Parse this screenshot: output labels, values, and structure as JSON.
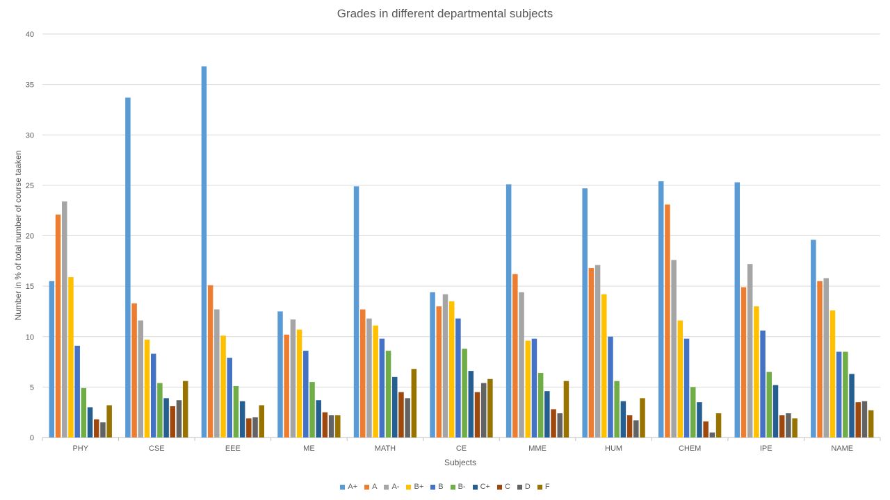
{
  "chart_data": {
    "type": "bar",
    "title": "Grades in different departmental subjects",
    "xlabel": "Subjects",
    "ylabel": "Number in % of total number of course taaken",
    "ylim": [
      0,
      40
    ],
    "yticks": [
      0,
      5,
      10,
      15,
      20,
      25,
      30,
      35,
      40
    ],
    "grid": true,
    "legend_position": "bottom",
    "categories": [
      "PHY",
      "CSE",
      "EEE",
      "ME",
      "MATH",
      "CE",
      "MME",
      "HUM",
      "CHEM",
      "IPE",
      "NAME"
    ],
    "series": [
      {
        "name": "A+",
        "color": "#5B9BD5",
        "values": [
          15.5,
          33.7,
          36.8,
          12.5,
          24.9,
          14.4,
          25.1,
          24.7,
          25.4,
          25.3,
          19.6
        ]
      },
      {
        "name": "A",
        "color": "#ED7D31",
        "values": [
          22.1,
          13.3,
          15.1,
          10.2,
          12.7,
          13.0,
          16.2,
          16.8,
          23.1,
          14.9,
          15.5
        ]
      },
      {
        "name": "A-",
        "color": "#A5A5A5",
        "values": [
          23.4,
          11.6,
          12.7,
          11.7,
          11.8,
          14.2,
          14.4,
          17.1,
          17.6,
          17.2,
          15.8
        ]
      },
      {
        "name": "B+",
        "color": "#FFC000",
        "values": [
          15.9,
          9.7,
          10.1,
          10.7,
          11.1,
          13.5,
          9.6,
          14.2,
          11.6,
          13.0,
          12.6
        ]
      },
      {
        "name": "B",
        "color": "#4472C4",
        "values": [
          9.1,
          8.3,
          7.9,
          8.6,
          9.8,
          11.8,
          9.8,
          10.0,
          9.8,
          10.6,
          8.5
        ]
      },
      {
        "name": "B-",
        "color": "#70AD47",
        "values": [
          4.9,
          5.4,
          5.1,
          5.5,
          8.6,
          8.8,
          6.4,
          5.6,
          5.0,
          6.5,
          8.5
        ]
      },
      {
        "name": "C+",
        "color": "#255E91",
        "values": [
          3.0,
          3.9,
          3.6,
          3.7,
          6.0,
          6.6,
          4.6,
          3.6,
          3.5,
          5.2,
          6.3
        ]
      },
      {
        "name": "C",
        "color": "#9E480E",
        "values": [
          1.8,
          3.1,
          1.9,
          2.5,
          4.5,
          4.5,
          2.8,
          2.2,
          1.6,
          2.2,
          3.5
        ]
      },
      {
        "name": "D",
        "color": "#636363",
        "values": [
          1.5,
          3.7,
          2.0,
          2.2,
          3.9,
          5.4,
          2.4,
          1.7,
          0.5,
          2.4,
          3.6
        ]
      },
      {
        "name": "F",
        "color": "#997300",
        "values": [
          3.2,
          5.6,
          3.2,
          2.2,
          6.8,
          5.8,
          5.6,
          3.9,
          2.4,
          1.9,
          2.7
        ]
      }
    ]
  }
}
